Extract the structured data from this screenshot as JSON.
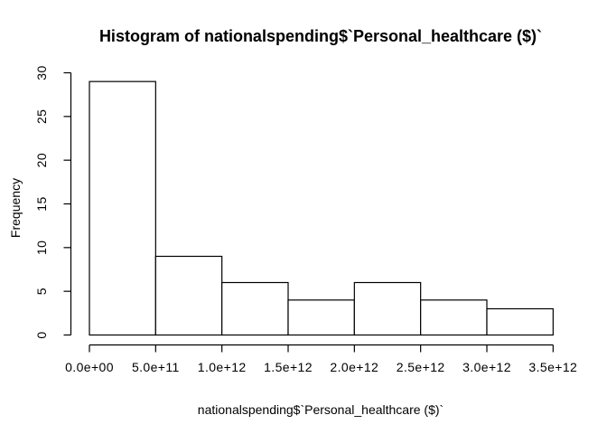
{
  "chart_data": {
    "type": "bar",
    "subtype": "histogram",
    "title": "Histogram of nationalspending$`Personal_healthcare ($)`",
    "xlabel": "nationalspending$`Personal_healthcare ($)`",
    "ylabel": "Frequency",
    "bin_edges": [
      0,
      500000000000.0,
      1000000000000.0,
      1500000000000.0,
      2000000000000.0,
      2500000000000.0,
      3000000000000.0,
      3500000000000.0
    ],
    "counts": [
      29,
      9,
      6,
      4,
      6,
      4,
      3
    ],
    "x_tick_values": [
      0,
      500000000000.0,
      1000000000000.0,
      1500000000000.0,
      2000000000000.0,
      2500000000000.0,
      3000000000000.0,
      3500000000000.0
    ],
    "x_tick_labels": [
      "0.0e+00",
      "5.0e+11",
      "1.0e+12",
      "1.5e+12",
      "2.0e+12",
      "2.5e+12",
      "3.0e+12",
      "3.5e+12"
    ],
    "y_ticks": [
      0,
      5,
      10,
      15,
      20,
      25,
      30
    ],
    "y_tick_labels": [
      "0",
      "5",
      "10",
      "15",
      "20",
      "25",
      "30"
    ],
    "xlim": [
      0,
      3500000000000.0
    ],
    "ylim": [
      0,
      30
    ],
    "grid": false,
    "legend": null,
    "bar_fill": "#ffffff",
    "line_color": "#000000",
    "text_color": "#000000",
    "background": "#ffffff"
  }
}
